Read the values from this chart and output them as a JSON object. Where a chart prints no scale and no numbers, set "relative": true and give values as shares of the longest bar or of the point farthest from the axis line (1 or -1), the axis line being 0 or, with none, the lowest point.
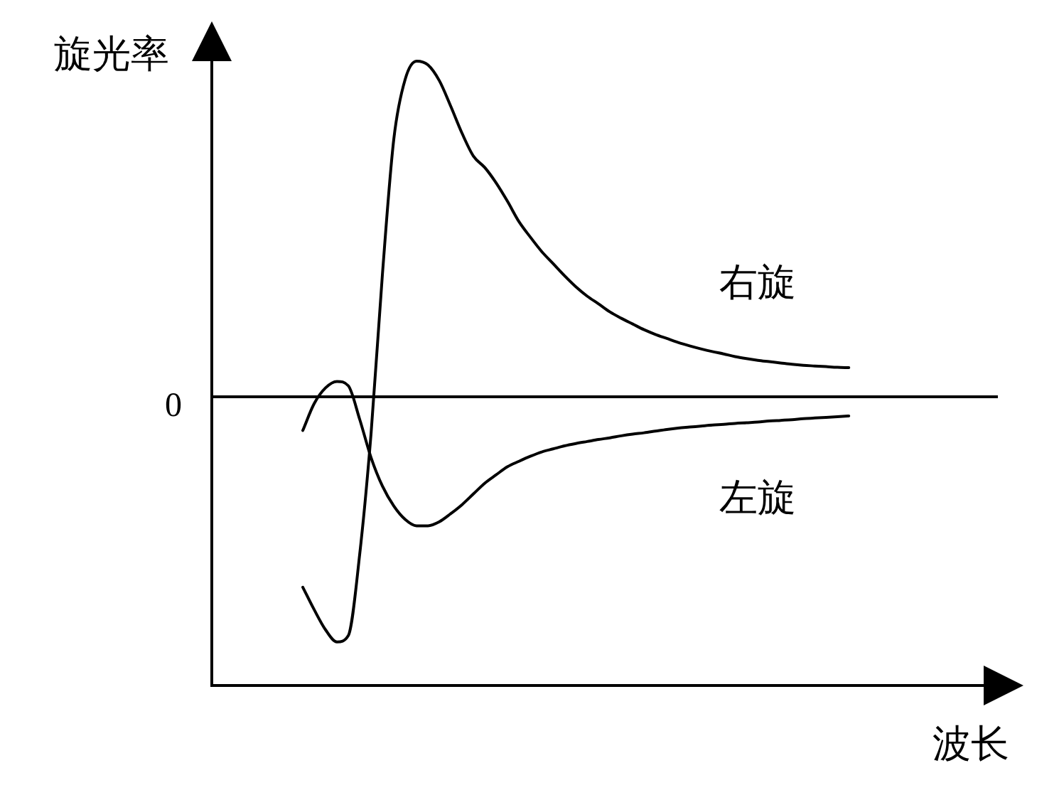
{
  "chart_data": {
    "type": "line",
    "xlabel": "波长",
    "ylabel": "旋光率",
    "relative": true,
    "marker": "none",
    "line_style": "solid",
    "categories": [
      null,
      null,
      null,
      null,
      null,
      null,
      null,
      null,
      null,
      null,
      null,
      null,
      null,
      null,
      null,
      null,
      null,
      null,
      null,
      null,
      null,
      null,
      null,
      null,
      null,
      null,
      null,
      null,
      null,
      null,
      null,
      null,
      null,
      null,
      null,
      null,
      null,
      null,
      null,
      null,
      null,
      null,
      null,
      null,
      null,
      null,
      null,
      null,
      null
    ],
    "series": [
      {
        "name": "右旋",
        "color": "#000000",
        "values": [
          -0.567,
          -0.634,
          -0.694,
          -0.73,
          -0.711,
          -0.469,
          -0.109,
          0.366,
          0.768,
          0.946,
          1.0,
          0.989,
          0.942,
          0.866,
          0.785,
          0.717,
          0.683,
          0.637,
          0.582,
          0.522,
          0.476,
          0.433,
          0.397,
          0.361,
          0.328,
          0.3,
          0.277,
          0.253,
          0.234,
          0.217,
          0.2,
          0.186,
          0.174,
          0.162,
          0.152,
          0.143,
          0.135,
          0.128,
          0.12,
          0.114,
          0.109,
          0.105,
          0.101,
          0.097,
          0.094,
          0.092,
          0.09,
          0.088,
          0.087
        ]
      },
      {
        "name": "左旋",
        "color": "#000000",
        "values": [
          -0.1,
          -0.02,
          0.027,
          0.046,
          0.033,
          -0.067,
          -0.181,
          -0.266,
          -0.325,
          -0.365,
          -0.384,
          -0.384,
          -0.372,
          -0.348,
          -0.321,
          -0.289,
          -0.257,
          -0.232,
          -0.208,
          -0.192,
          -0.177,
          -0.164,
          -0.155,
          -0.146,
          -0.139,
          -0.133,
          -0.127,
          -0.122,
          -0.116,
          -0.111,
          -0.107,
          -0.102,
          -0.097,
          -0.093,
          -0.09,
          -0.087,
          -0.084,
          -0.082,
          -0.079,
          -0.077,
          -0.075,
          -0.072,
          -0.07,
          -0.068,
          -0.065,
          -0.063,
          -0.061,
          -0.059,
          -0.057
        ]
      }
    ],
    "ref_lines": [
      {
        "axis": "y",
        "value": 0,
        "label": "0",
        "color": "#000000"
      }
    ]
  }
}
